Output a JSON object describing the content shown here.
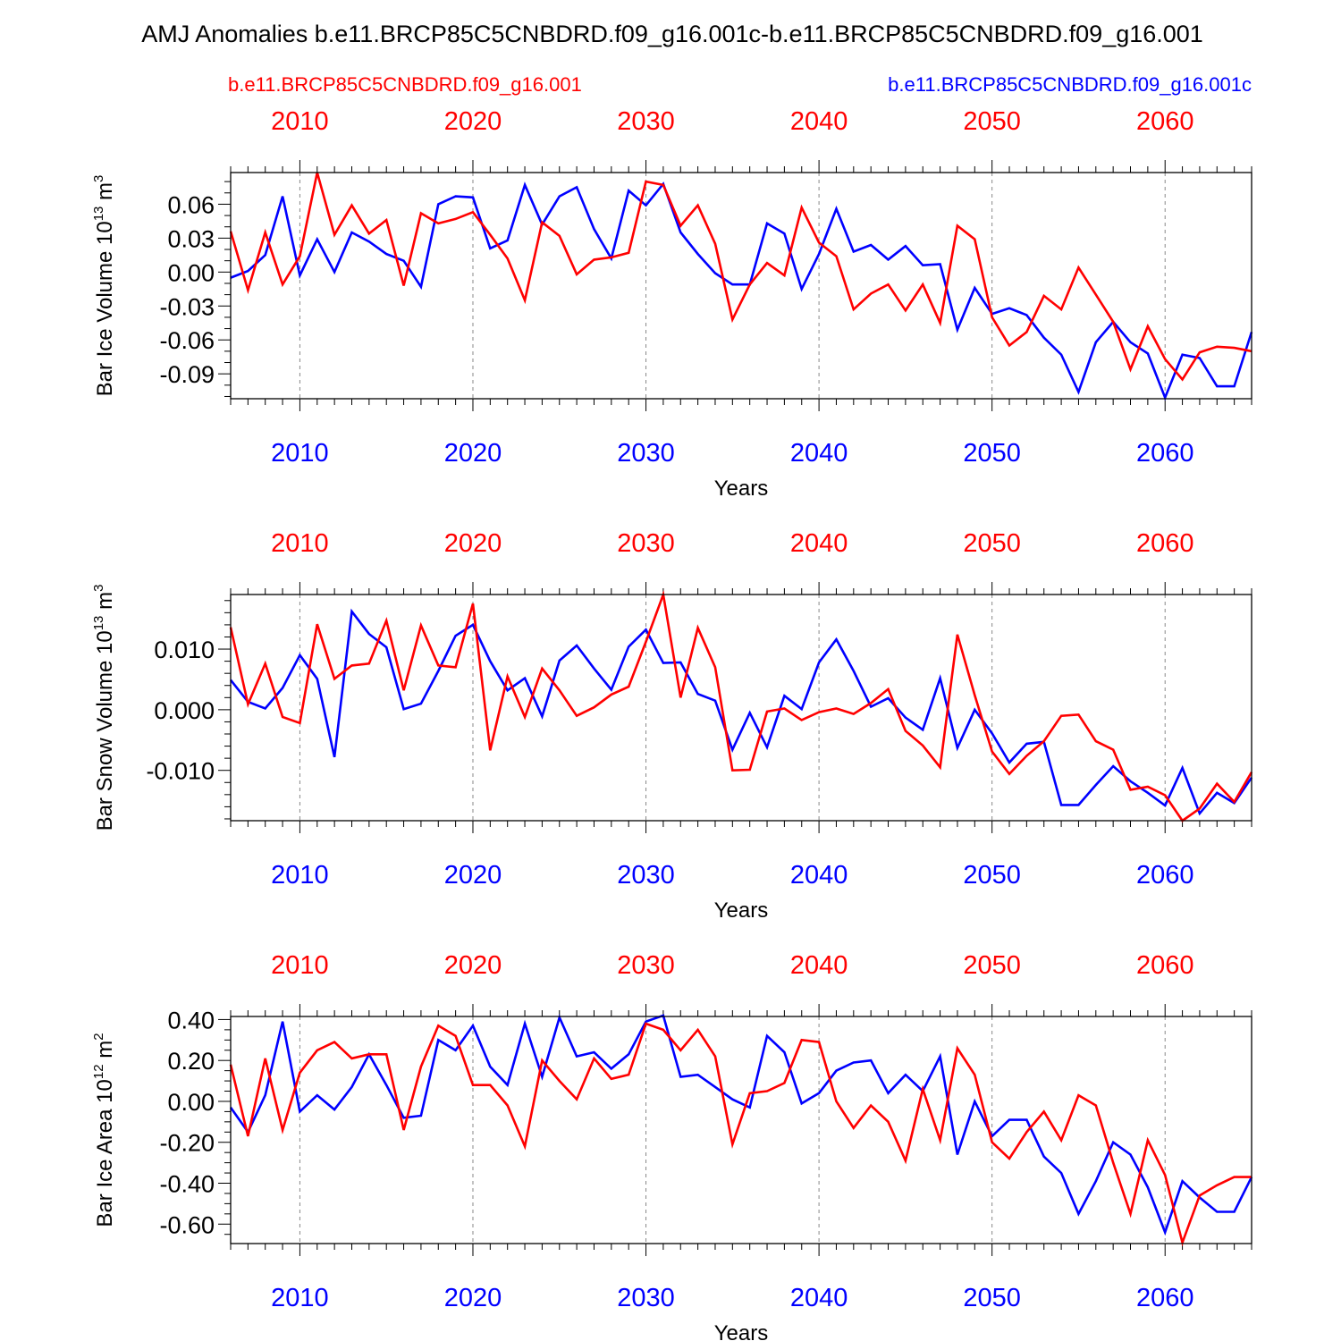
{
  "figure": {
    "title": "AMJ Anomalies b.e11.BRCP85C5CNBDRD.f09_g16.001c-b.e11.BRCP85C5CNBDRD.f09_g16.001",
    "legend_red": "b.e11.BRCP85C5CNBDRD.f09_g16.001",
    "legend_blue": "b.e11.BRCP85C5CNBDRD.f09_g16.001c"
  },
  "colors": {
    "red": "#ff0000",
    "blue": "#0000ff",
    "axis": "#000000",
    "grid": "#888888"
  },
  "chart_data": [
    {
      "type": "line",
      "title": "",
      "ylabel": "Bar Ice Volume 10",
      "ylabel_exp": "13",
      "ylabel_unit": " m",
      "ylabel_unit_exp": "3",
      "xlabel": "Years",
      "xlim": [
        2006,
        2065
      ],
      "ylim": [
        -0.112,
        0.088
      ],
      "yticks": [
        0.06,
        0.03,
        0.0,
        -0.03,
        -0.06,
        -0.09
      ],
      "ytick_labels": [
        "0.06",
        "0.03",
        "0.00",
        "-0.03",
        "-0.06",
        "-0.09"
      ],
      "yminor_step": 0.01,
      "xticks": [
        2010,
        2020,
        2030,
        2040,
        2050,
        2060
      ],
      "xtick_labels": [
        "2010",
        "2020",
        "2030",
        "2040",
        "2050",
        "2060"
      ],
      "gridlines_x": true,
      "x": [
        2006,
        2007,
        2008,
        2009,
        2010,
        2011,
        2012,
        2013,
        2014,
        2015,
        2016,
        2017,
        2018,
        2019,
        2020,
        2021,
        2022,
        2023,
        2024,
        2025,
        2026,
        2027,
        2028,
        2029,
        2030,
        2031,
        2032,
        2033,
        2034,
        2035,
        2036,
        2037,
        2038,
        2039,
        2040,
        2041,
        2042,
        2043,
        2044,
        2045,
        2046,
        2047,
        2048,
        2049,
        2050,
        2051,
        2052,
        2053,
        2054,
        2055,
        2056,
        2057,
        2058,
        2059,
        2060,
        2061,
        2062,
        2063,
        2064,
        2065
      ],
      "series": [
        {
          "name": "b.e11.BRCP85C5CNBDRD.f09_g16.001",
          "color": "red",
          "values": [
            0.036,
            -0.016,
            0.035,
            -0.011,
            0.014,
            0.088,
            0.033,
            0.059,
            0.034,
            0.046,
            -0.012,
            0.052,
            0.043,
            0.047,
            0.053,
            0.033,
            0.012,
            -0.025,
            0.044,
            0.032,
            -0.002,
            0.011,
            0.013,
            0.017,
            0.08,
            0.077,
            0.041,
            0.059,
            0.025,
            -0.042,
            -0.011,
            0.008,
            -0.003,
            0.057,
            0.026,
            0.014,
            -0.033,
            -0.019,
            -0.011,
            -0.034,
            -0.011,
            -0.045,
            0.041,
            0.029,
            -0.04,
            -0.065,
            -0.053,
            -0.021,
            -0.033,
            0.004,
            -0.02,
            -0.044,
            -0.086,
            -0.048,
            -0.077,
            -0.095,
            -0.071,
            -0.066,
            -0.067,
            -0.07
          ]
        },
        {
          "name": "b.e11.BRCP85C5CNBDRD.f09_g16.001c",
          "color": "blue",
          "values": [
            -0.005,
            0.001,
            0.015,
            0.067,
            -0.003,
            0.029,
            0.0,
            0.035,
            0.027,
            0.016,
            0.01,
            -0.013,
            0.06,
            0.067,
            0.066,
            0.021,
            0.028,
            0.077,
            0.042,
            0.067,
            0.075,
            0.038,
            0.012,
            0.072,
            0.059,
            0.078,
            0.035,
            0.016,
            -0.001,
            -0.011,
            -0.011,
            0.043,
            0.034,
            -0.015,
            0.016,
            0.056,
            0.018,
            0.024,
            0.011,
            0.023,
            0.006,
            0.007,
            -0.051,
            -0.014,
            -0.037,
            -0.032,
            -0.038,
            -0.058,
            -0.073,
            -0.106,
            -0.062,
            -0.044,
            -0.062,
            -0.072,
            -0.111,
            -0.073,
            -0.076,
            -0.101,
            -0.101,
            -0.053
          ]
        }
      ]
    },
    {
      "type": "line",
      "title": "",
      "ylabel": "Bar Snow Volume 10",
      "ylabel_exp": "13",
      "ylabel_unit": " m",
      "ylabel_unit_exp": "3",
      "xlabel": "Years",
      "xlim": [
        2006,
        2065
      ],
      "ylim": [
        -0.0183,
        0.019
      ],
      "yticks": [
        0.01,
        0.0,
        -0.01
      ],
      "ytick_labels": [
        "0.010",
        "0.000",
        "-0.010"
      ],
      "yminor_step": 0.002,
      "xticks": [
        2010,
        2020,
        2030,
        2040,
        2050,
        2060
      ],
      "xtick_labels": [
        "2010",
        "2020",
        "2030",
        "2040",
        "2050",
        "2060"
      ],
      "gridlines_x": true,
      "x": [
        2006,
        2007,
        2008,
        2009,
        2010,
        2011,
        2012,
        2013,
        2014,
        2015,
        2016,
        2017,
        2018,
        2019,
        2020,
        2021,
        2022,
        2023,
        2024,
        2025,
        2026,
        2027,
        2028,
        2029,
        2030,
        2031,
        2032,
        2033,
        2034,
        2035,
        2036,
        2037,
        2038,
        2039,
        2040,
        2041,
        2042,
        2043,
        2044,
        2045,
        2046,
        2047,
        2048,
        2049,
        2050,
        2051,
        2052,
        2053,
        2054,
        2055,
        2056,
        2057,
        2058,
        2059,
        2060,
        2061,
        2062,
        2063,
        2064,
        2065
      ],
      "series": [
        {
          "name": "b.e11.BRCP85C5CNBDRD.f09_g16.001",
          "color": "red",
          "values": [
            0.0136,
            0.0009,
            0.0076,
            -0.0012,
            -0.0022,
            0.0141,
            0.0051,
            0.0073,
            0.0076,
            0.0147,
            0.0032,
            0.0139,
            0.0073,
            0.007,
            0.0175,
            -0.0067,
            0.0055,
            -0.0012,
            0.0068,
            0.0032,
            -0.001,
            0.0004,
            0.0025,
            0.0038,
            0.0112,
            0.019,
            0.002,
            0.0135,
            0.007,
            -0.01,
            -0.0099,
            -0.0003,
            0.0002,
            -0.0017,
            -0.0004,
            0.0002,
            -0.0007,
            0.0011,
            0.0034,
            -0.0035,
            -0.0059,
            -0.0095,
            0.0124,
            0.0024,
            -0.0069,
            -0.0106,
            -0.0076,
            -0.0052,
            -0.001,
            -0.0008,
            -0.0052,
            -0.0066,
            -0.0132,
            -0.0127,
            -0.0141,
            -0.0183,
            -0.0163,
            -0.0122,
            -0.0152,
            -0.0103
          ]
        },
        {
          "name": "b.e11.BRCP85C5CNBDRD.f09_g16.001c",
          "color": "blue",
          "values": [
            0.0049,
            0.0013,
            0.0002,
            0.0036,
            0.009,
            0.0051,
            -0.0078,
            0.0162,
            0.0125,
            0.0103,
            0.0001,
            0.001,
            0.0064,
            0.0122,
            0.014,
            0.008,
            0.0032,
            0.0052,
            -0.0011,
            0.0081,
            0.0106,
            0.0068,
            0.0033,
            0.0104,
            0.0132,
            0.0077,
            0.0078,
            0.0026,
            0.0015,
            -0.0066,
            -0.0005,
            -0.0062,
            0.0023,
            0.0001,
            0.0078,
            0.0116,
            0.0064,
            0.0005,
            0.0019,
            -0.0013,
            -0.0033,
            0.0052,
            -0.0063,
            0.0,
            -0.0039,
            -0.0087,
            -0.0056,
            -0.0053,
            -0.0157,
            -0.0157,
            -0.0124,
            -0.0093,
            -0.0118,
            -0.0137,
            -0.0158,
            -0.0096,
            -0.0171,
            -0.0137,
            -0.0154,
            -0.0112
          ]
        }
      ]
    },
    {
      "type": "line",
      "title": "",
      "ylabel": "Bar Ice Area 10",
      "ylabel_exp": "12",
      "ylabel_unit": " m",
      "ylabel_unit_exp": "2",
      "xlabel": "Years",
      "xlim": [
        2006,
        2065
      ],
      "ylim": [
        -0.695,
        0.415
      ],
      "yticks": [
        0.4,
        0.2,
        0.0,
        -0.2,
        -0.4,
        -0.6
      ],
      "ytick_labels": [
        "0.40",
        "0.20",
        "0.00",
        "-0.20",
        "-0.40",
        "-0.60"
      ],
      "yminor_step": 0.05,
      "xticks": [
        2010,
        2020,
        2030,
        2040,
        2050,
        2060
      ],
      "xtick_labels": [
        "2010",
        "2020",
        "2030",
        "2040",
        "2050",
        "2060"
      ],
      "gridlines_x": true,
      "x": [
        2006,
        2007,
        2008,
        2009,
        2010,
        2011,
        2012,
        2013,
        2014,
        2015,
        2016,
        2017,
        2018,
        2019,
        2020,
        2021,
        2022,
        2023,
        2024,
        2025,
        2026,
        2027,
        2028,
        2029,
        2030,
        2031,
        2032,
        2033,
        2034,
        2035,
        2036,
        2037,
        2038,
        2039,
        2040,
        2041,
        2042,
        2043,
        2044,
        2045,
        2046,
        2047,
        2048,
        2049,
        2050,
        2051,
        2052,
        2053,
        2054,
        2055,
        2056,
        2057,
        2058,
        2059,
        2060,
        2061,
        2062,
        2063,
        2064,
        2065
      ],
      "series": [
        {
          "name": "b.e11.BRCP85C5CNBDRD.f09_g16.001",
          "color": "red",
          "values": [
            0.18,
            -0.17,
            0.21,
            -0.14,
            0.14,
            0.25,
            0.29,
            0.21,
            0.23,
            0.23,
            -0.14,
            0.17,
            0.37,
            0.32,
            0.08,
            0.08,
            -0.02,
            -0.22,
            0.2,
            0.1,
            0.01,
            0.21,
            0.11,
            0.13,
            0.38,
            0.35,
            0.25,
            0.35,
            0.22,
            -0.21,
            0.04,
            0.05,
            0.09,
            0.3,
            0.29,
            0.0,
            -0.13,
            -0.02,
            -0.1,
            -0.29,
            0.06,
            -0.19,
            0.26,
            0.13,
            -0.2,
            -0.28,
            -0.15,
            -0.05,
            -0.19,
            0.03,
            -0.02,
            -0.3,
            -0.55,
            -0.19,
            -0.36,
            -0.69,
            -0.46,
            -0.41,
            -0.37,
            -0.37
          ]
        },
        {
          "name": "b.e11.BRCP85C5CNBDRD.f09_g16.001c",
          "color": "blue",
          "values": [
            -0.03,
            -0.15,
            0.03,
            0.39,
            -0.05,
            0.03,
            -0.04,
            0.07,
            0.23,
            0.08,
            -0.08,
            -0.07,
            0.3,
            0.25,
            0.37,
            0.17,
            0.08,
            0.38,
            0.12,
            0.41,
            0.22,
            0.24,
            0.16,
            0.23,
            0.39,
            0.42,
            0.12,
            0.13,
            0.07,
            0.01,
            -0.03,
            0.32,
            0.24,
            -0.01,
            0.04,
            0.15,
            0.19,
            0.2,
            0.04,
            0.13,
            0.05,
            0.22,
            -0.26,
            0.0,
            -0.17,
            -0.09,
            -0.09,
            -0.27,
            -0.35,
            -0.55,
            -0.39,
            -0.2,
            -0.26,
            -0.42,
            -0.64,
            -0.39,
            -0.47,
            -0.54,
            -0.54,
            -0.37
          ]
        }
      ]
    }
  ]
}
